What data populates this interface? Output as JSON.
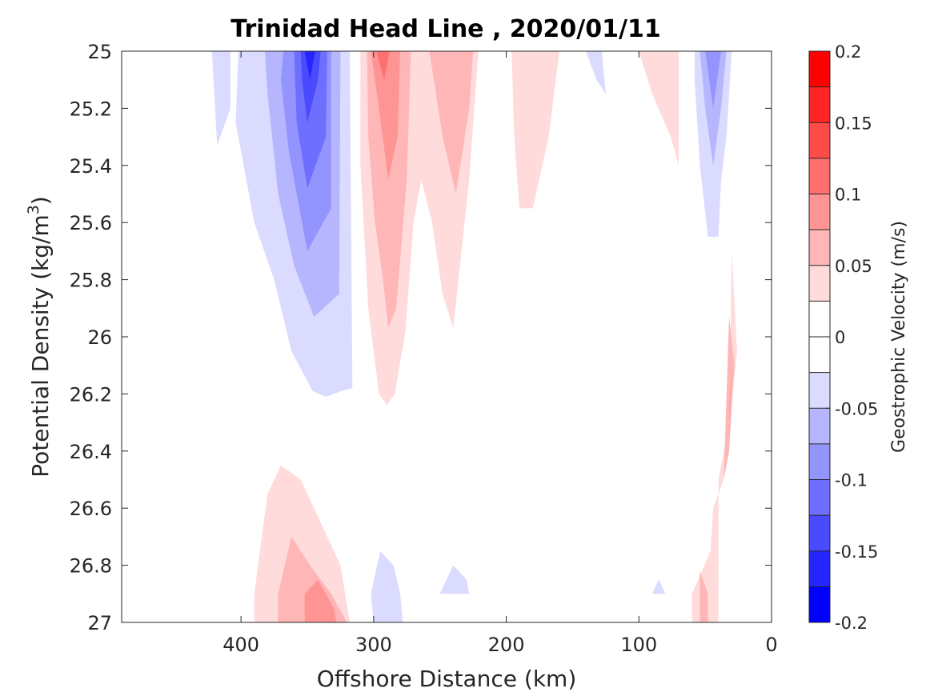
{
  "chart_data": {
    "type": "contour",
    "title": "Trinidad Head Line , 2020/01/11",
    "xlabel": "Offshore Distance (km)",
    "ylabel_main": "Potential Density (kg/m",
    "ylabel_sup": "3",
    "ylabel_close": ")",
    "colorbar_label": "Geostrophic Velocity (m/s)",
    "x_reversed": true,
    "xlim": [
      0,
      490
    ],
    "ylim": [
      25,
      27
    ],
    "y_reversed": true,
    "x_ticks": [
      400,
      300,
      200,
      100,
      0
    ],
    "x_tick_labels": [
      "400",
      "300",
      "200",
      "100",
      "0"
    ],
    "y_ticks": [
      25,
      25.2,
      25.4,
      25.6,
      25.8,
      26,
      26.2,
      26.4,
      26.6,
      26.8,
      27
    ],
    "y_tick_labels": [
      "25",
      "25.2",
      "25.4",
      "25.6",
      "25.8",
      "26",
      "26.2",
      "26.4",
      "26.6",
      "26.8",
      "27"
    ],
    "colorbar_range": [
      -0.2,
      0.2
    ],
    "colorbar_ticks": [
      0.2,
      0.15,
      0.1,
      0.05,
      0,
      -0.05,
      -0.1,
      -0.15,
      -0.2
    ],
    "colorbar_tick_labels": [
      "0.2",
      "0.15",
      "0.1",
      "0.05",
      "0",
      "-0.05",
      "-0.1",
      "-0.15",
      "-0.2"
    ],
    "levels": [
      {
        "min": 0.175,
        "max": 0.2,
        "color": "#ff0000"
      },
      {
        "min": 0.15,
        "max": 0.175,
        "color": "#ff2525"
      },
      {
        "min": 0.125,
        "max": 0.15,
        "color": "#ff4a4a"
      },
      {
        "min": 0.1,
        "max": 0.125,
        "color": "#ff6f6f"
      },
      {
        "min": 0.075,
        "max": 0.1,
        "color": "#ff9494"
      },
      {
        "min": 0.05,
        "max": 0.075,
        "color": "#ffb6b6"
      },
      {
        "min": 0.025,
        "max": 0.05,
        "color": "#ffdbdb"
      },
      {
        "min": 0,
        "max": 0.025,
        "color": "#ffffff"
      },
      {
        "min": -0.025,
        "max": 0,
        "color": "#ffffff"
      },
      {
        "min": -0.05,
        "max": -0.025,
        "color": "#dbdbff"
      },
      {
        "min": -0.075,
        "max": -0.05,
        "color": "#b6b6ff"
      },
      {
        "min": -0.1,
        "max": -0.075,
        "color": "#9494ff"
      },
      {
        "min": -0.125,
        "max": -0.1,
        "color": "#6f6fff"
      },
      {
        "min": -0.15,
        "max": -0.125,
        "color": "#4a4aff"
      },
      {
        "min": -0.175,
        "max": -0.15,
        "color": "#2525ff"
      },
      {
        "min": -0.2,
        "max": -0.175,
        "color": "#0000ff"
      }
    ],
    "regions": [
      {
        "level": -0.0375,
        "points": [
          [
            422,
            25.0
          ],
          [
            408,
            25.0
          ],
          [
            408,
            25.2
          ],
          [
            418,
            25.33
          ]
        ]
      },
      {
        "level": -0.0375,
        "points": [
          [
            402,
            25.0
          ],
          [
            318,
            25.0
          ],
          [
            316,
            26.18
          ],
          [
            324,
            26.19
          ],
          [
            336,
            26.21
          ],
          [
            346,
            26.19
          ],
          [
            362,
            26.05
          ],
          [
            375,
            25.8
          ],
          [
            390,
            25.6
          ],
          [
            404,
            25.25
          ]
        ]
      },
      {
        "level": -0.0625,
        "points": [
          [
            382,
            25.0
          ],
          [
            325,
            25.0
          ],
          [
            326,
            25.85
          ],
          [
            345,
            25.93
          ],
          [
            360,
            25.75
          ],
          [
            372,
            25.5
          ],
          [
            380,
            25.15
          ]
        ]
      },
      {
        "level": -0.0875,
        "points": [
          [
            368,
            25.0
          ],
          [
            332,
            25.0
          ],
          [
            332,
            25.55
          ],
          [
            350,
            25.7
          ],
          [
            364,
            25.35
          ],
          [
            370,
            25.1
          ]
        ]
      },
      {
        "level": -0.1125,
        "points": [
          [
            360,
            25.0
          ],
          [
            335,
            25.0
          ],
          [
            336,
            25.3
          ],
          [
            350,
            25.48
          ],
          [
            358,
            25.25
          ]
        ]
      },
      {
        "level": -0.1375,
        "points": [
          [
            355,
            25.0
          ],
          [
            340,
            25.0
          ],
          [
            342,
            25.1
          ],
          [
            350,
            25.25
          ],
          [
            354,
            25.1
          ]
        ]
      },
      {
        "level": -0.1625,
        "points": [
          [
            352,
            25.0
          ],
          [
            344,
            25.0
          ],
          [
            348,
            25.1
          ]
        ]
      },
      {
        "level": 0.0375,
        "points": [
          [
            310,
            25.0
          ],
          [
            221,
            25.0
          ],
          [
            228,
            25.45
          ],
          [
            240,
            25.97
          ],
          [
            248,
            25.85
          ],
          [
            256,
            25.6
          ],
          [
            264,
            25.45
          ],
          [
            270,
            25.6
          ],
          [
            276,
            25.98
          ],
          [
            284,
            26.2
          ],
          [
            290,
            26.24
          ],
          [
            296,
            26.2
          ],
          [
            304,
            25.9
          ],
          [
            310,
            25.4
          ]
        ]
      },
      {
        "level": 0.0625,
        "points": [
          [
            305,
            25.0
          ],
          [
            272,
            25.0
          ],
          [
            275,
            25.45
          ],
          [
            283,
            25.9
          ],
          [
            289,
            25.97
          ],
          [
            293,
            25.8
          ],
          [
            299,
            25.6
          ],
          [
            304,
            25.3
          ]
        ]
      },
      {
        "level": 0.0875,
        "points": [
          [
            302,
            25.0
          ],
          [
            280,
            25.0
          ],
          [
            282,
            25.3
          ],
          [
            289,
            25.45
          ],
          [
            296,
            25.2
          ]
        ]
      },
      {
        "level": 0.1125,
        "points": [
          [
            298,
            25.0
          ],
          [
            288,
            25.0
          ],
          [
            292,
            25.1
          ]
        ]
      },
      {
        "level": 0.0625,
        "points": [
          [
            258,
            25.0
          ],
          [
            225,
            25.0
          ],
          [
            228,
            25.2
          ],
          [
            238,
            25.5
          ],
          [
            248,
            25.3
          ]
        ]
      },
      {
        "level": 0.0375,
        "points": [
          [
            196,
            25.0
          ],
          [
            160,
            25.0
          ],
          [
            168,
            25.3
          ],
          [
            180,
            25.55
          ],
          [
            190,
            25.55
          ],
          [
            194,
            25.3
          ]
        ]
      },
      {
        "level": -0.0375,
        "points": [
          [
            140,
            25.0
          ],
          [
            128,
            25.0
          ],
          [
            125,
            25.15
          ],
          [
            132,
            25.1
          ]
        ]
      },
      {
        "level": 0.0375,
        "points": [
          [
            100,
            25.0
          ],
          [
            70,
            25.0
          ],
          [
            70,
            25.4
          ],
          [
            76,
            25.3
          ],
          [
            90,
            25.15
          ]
        ]
      },
      {
        "level": -0.0375,
        "points": [
          [
            58,
            25.0
          ],
          [
            30,
            25.0
          ],
          [
            34,
            25.3
          ],
          [
            38,
            25.45
          ],
          [
            40,
            25.65
          ],
          [
            48,
            25.65
          ],
          [
            54,
            25.4
          ],
          [
            58,
            25.1
          ]
        ]
      },
      {
        "level": -0.0625,
        "points": [
          [
            54,
            25.0
          ],
          [
            34,
            25.0
          ],
          [
            38,
            25.2
          ],
          [
            44,
            25.4
          ],
          [
            50,
            25.2
          ]
        ]
      },
      {
        "level": -0.0875,
        "points": [
          [
            50,
            25.0
          ],
          [
            38,
            25.0
          ],
          [
            44,
            25.2
          ]
        ]
      },
      {
        "level": 0.0375,
        "points": [
          [
            30,
            25.7
          ],
          [
            26,
            26.05
          ],
          [
            36,
            26.5
          ],
          [
            44,
            26.6
          ],
          [
            46,
            26.75
          ],
          [
            60,
            26.9
          ],
          [
            60,
            27.0
          ],
          [
            40,
            27.0
          ],
          [
            40,
            26.5
          ],
          [
            32,
            26.3
          ]
        ]
      },
      {
        "level": 0.0625,
        "points": [
          [
            32,
            25.93
          ],
          [
            28,
            26.1
          ],
          [
            32,
            26.4
          ],
          [
            36,
            26.5
          ]
        ]
      },
      {
        "level": 0.0875,
        "points": [
          [
            30,
            26.1
          ],
          [
            32,
            26.25
          ],
          [
            32,
            26.3
          ]
        ]
      },
      {
        "level": 0.0625,
        "points": [
          [
            54,
            26.82
          ],
          [
            48,
            26.9
          ],
          [
            48,
            27.0
          ],
          [
            54,
            27.0
          ]
        ]
      },
      {
        "level": 0.0375,
        "points": [
          [
            390,
            26.9
          ],
          [
            380,
            26.55
          ],
          [
            370,
            26.45
          ],
          [
            355,
            26.5
          ],
          [
            340,
            26.65
          ],
          [
            325,
            26.8
          ],
          [
            318,
            27.0
          ],
          [
            390,
            27.0
          ]
        ]
      },
      {
        "level": 0.0625,
        "points": [
          [
            372,
            26.9
          ],
          [
            362,
            26.7
          ],
          [
            348,
            26.8
          ],
          [
            332,
            26.9
          ],
          [
            320,
            27.0
          ],
          [
            372,
            27.0
          ]
        ]
      },
      {
        "level": 0.0875,
        "points": [
          [
            352,
            26.9
          ],
          [
            342,
            26.85
          ],
          [
            330,
            26.95
          ],
          [
            328,
            27.0
          ],
          [
            352,
            27.0
          ]
        ]
      },
      {
        "level": -0.0375,
        "points": [
          [
            300,
            27.0
          ],
          [
            302,
            26.9
          ],
          [
            295,
            26.75
          ],
          [
            285,
            26.8
          ],
          [
            280,
            26.9
          ],
          [
            278,
            27.0
          ]
        ]
      },
      {
        "level": -0.0375,
        "points": [
          [
            255,
            27.0
          ],
          [
            250,
            26.9
          ],
          [
            240,
            26.8
          ],
          [
            230,
            26.85
          ],
          [
            228,
            26.9
          ],
          [
            250,
            26.9
          ]
        ]
      },
      {
        "level": -0.0375,
        "points": [
          [
            90,
            26.9
          ],
          [
            85,
            26.85
          ],
          [
            80,
            26.9
          ]
        ]
      }
    ]
  }
}
